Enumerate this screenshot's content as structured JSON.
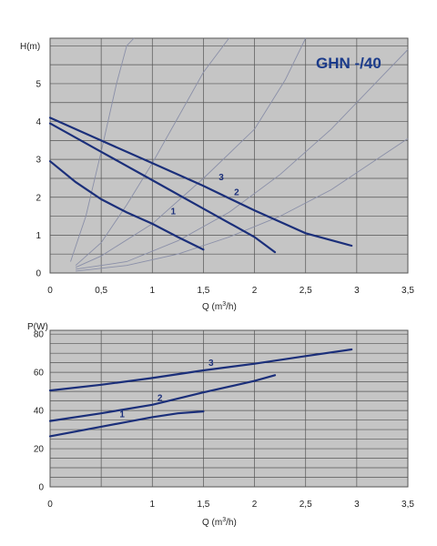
{
  "colors": {
    "plot_bg": "#c5c5c5",
    "grid": "#555555",
    "curve": "#1b2f7a",
    "system_curve": "#8a8fa8",
    "title": "#1a3a8a"
  },
  "chart_data": [
    {
      "type": "line",
      "title": "GHN -/40",
      "ylabel": "H(m)",
      "xlabel_main": "Q (m",
      "xlabel_sup": "3",
      "xlabel_end": "/h)",
      "xlim": [
        0,
        3.5
      ],
      "ylim": [
        0,
        6.2
      ],
      "xticks": [
        "0",
        "0,5",
        "1",
        "1,5",
        "2",
        "2,5",
        "3",
        "3,5"
      ],
      "xtick_values": [
        0,
        0.5,
        1,
        1.5,
        2,
        2.5,
        3,
        3.5
      ],
      "yticks": [
        "0",
        "1",
        "2",
        "3",
        "4",
        "5"
      ],
      "ytick_values": [
        0,
        1,
        2,
        3,
        4,
        5
      ],
      "grid": true,
      "series": [
        {
          "name": "1",
          "x": [
            0,
            0.25,
            0.5,
            0.75,
            1.0,
            1.25,
            1.5
          ],
          "y": [
            2.95,
            2.4,
            1.95,
            1.6,
            1.3,
            0.95,
            0.62
          ]
        },
        {
          "name": "2",
          "x": [
            0,
            0.5,
            1.0,
            1.5,
            2.0,
            2.2
          ],
          "y": [
            3.95,
            3.2,
            2.45,
            1.7,
            0.95,
            0.55
          ]
        },
        {
          "name": "3",
          "x": [
            0,
            0.5,
            1.0,
            1.5,
            2.0,
            2.5,
            2.95
          ],
          "y": [
            4.1,
            3.5,
            2.9,
            2.3,
            1.65,
            1.05,
            0.72
          ]
        }
      ],
      "system_curves": [
        {
          "x": [
            0.2,
            0.35,
            0.5,
            0.65,
            0.75,
            0.82
          ],
          "y": [
            0.3,
            1.5,
            3.2,
            5.0,
            6.0,
            6.2
          ]
        },
        {
          "x": [
            0.25,
            0.5,
            0.75,
            1.0,
            1.25,
            1.5,
            1.75
          ],
          "y": [
            0.2,
            0.8,
            1.8,
            2.9,
            4.1,
            5.3,
            6.2
          ]
        },
        {
          "x": [
            0.25,
            0.5,
            1.0,
            1.5,
            2.0,
            2.3,
            2.5
          ],
          "y": [
            0.15,
            0.45,
            1.3,
            2.5,
            3.8,
            5.1,
            6.2
          ]
        },
        {
          "x": [
            0.25,
            0.75,
            1.25,
            1.75,
            2.25,
            2.75,
            3.25,
            3.5
          ],
          "y": [
            0.1,
            0.3,
            0.85,
            1.6,
            2.6,
            3.8,
            5.2,
            5.9
          ]
        },
        {
          "x": [
            0.25,
            0.75,
            1.25,
            1.75,
            2.25,
            2.75,
            3.25,
            3.5
          ],
          "y": [
            0.05,
            0.2,
            0.5,
            0.95,
            1.5,
            2.2,
            3.1,
            3.55
          ]
        }
      ]
    },
    {
      "type": "line",
      "title": "",
      "ylabel": "P(W)",
      "xlabel_main": "Q (m",
      "xlabel_sup": "3",
      "xlabel_end": "/h)",
      "xlim": [
        0,
        3.5
      ],
      "ylim": [
        0,
        82
      ],
      "xticks": [
        "0",
        "1",
        "1,5",
        "2",
        "2,5",
        "3",
        "3,5"
      ],
      "xtick_values": [
        0,
        1,
        1.5,
        2,
        2.5,
        3,
        3.5
      ],
      "yticks": [
        "0",
        "20",
        "40",
        "60",
        "80"
      ],
      "ytick_values": [
        0,
        20,
        40,
        60,
        80
      ],
      "grid": true,
      "series": [
        {
          "name": "1",
          "x": [
            0,
            0.25,
            0.5,
            0.75,
            1.0,
            1.25,
            1.5
          ],
          "y": [
            26.5,
            29,
            31.5,
            34,
            36.5,
            38.5,
            39.5
          ]
        },
        {
          "name": "2",
          "x": [
            0,
            0.5,
            1.0,
            1.5,
            2.0,
            2.2
          ],
          "y": [
            34.5,
            38.5,
            43,
            49.5,
            55.5,
            58.5
          ]
        },
        {
          "name": "3",
          "x": [
            0,
            0.5,
            1.0,
            1.5,
            2.0,
            2.5,
            2.95
          ],
          "y": [
            50.5,
            53.5,
            57,
            61,
            64.5,
            68.5,
            72
          ]
        }
      ]
    }
  ]
}
